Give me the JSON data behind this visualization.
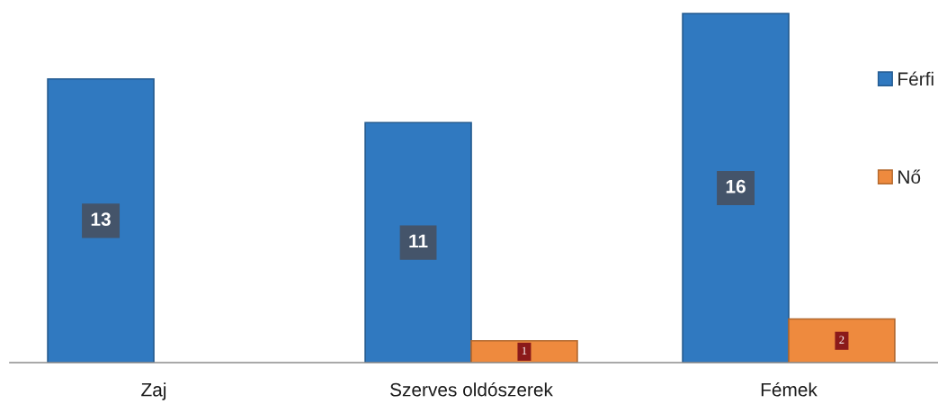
{
  "chart_data": {
    "type": "bar",
    "categories": [
      "Zaj",
      "Szerves oldószerek",
      "Fémek"
    ],
    "series": [
      {
        "name": "Férfi",
        "color": "#3079c0",
        "values": [
          13,
          11,
          16
        ]
      },
      {
        "name": "Nő",
        "color": "#ee8a3e",
        "values": [
          null,
          1,
          2
        ]
      }
    ],
    "data_labels": true,
    "legend": "right",
    "tick_labels": "x"
  }
}
